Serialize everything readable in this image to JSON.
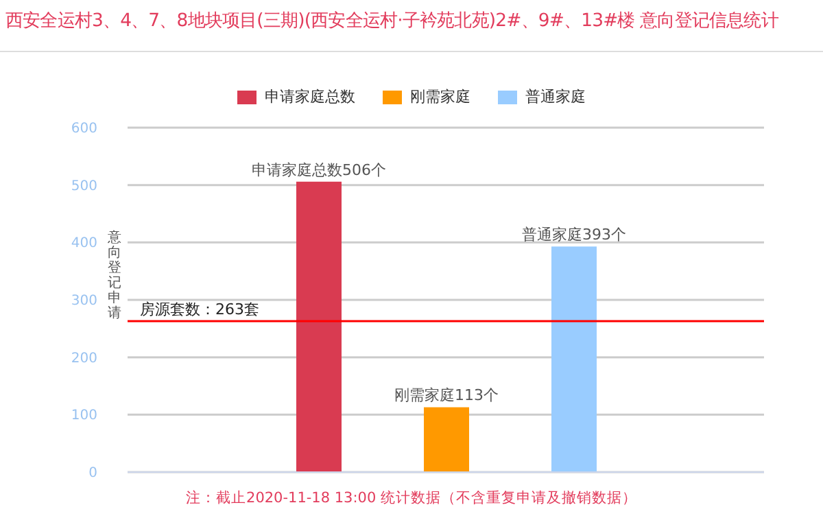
{
  "chart_data": {
    "type": "bar",
    "title": "西安全运村3、4、7、8地块项目(三期)(西安全运村·子衿苑北苑)2#、9#、13#楼 意向登记信息统计",
    "ylabel": "意向登记申请",
    "categories": [
      null
    ],
    "series": [
      {
        "name": "申请家庭总数",
        "color": "#d93b51",
        "values": [
          506
        ],
        "value_labels": [
          "申请家庭总数506个"
        ]
      },
      {
        "name": "刚需家庭",
        "color": "#ff9900",
        "values": [
          113
        ],
        "value_labels": [
          "刚需家庭113个"
        ]
      },
      {
        "name": "普通家庭",
        "color": "#99ccff",
        "values": [
          393
        ],
        "value_labels": [
          "普通家庭393个"
        ]
      }
    ],
    "ylim": [
      0,
      600
    ],
    "yticks": [
      0,
      100,
      200,
      300,
      400,
      500,
      600
    ],
    "grid": "y",
    "legend": "top",
    "tick_labels": "y",
    "ref_lines": [
      {
        "axis": "y",
        "value": 263,
        "label": "房源套数：263套",
        "color": "#ff0000"
      }
    ],
    "annotations": [
      "注：截止2020-11-18 13:00 统计数据（不含重复申请及撤销数据）"
    ]
  }
}
